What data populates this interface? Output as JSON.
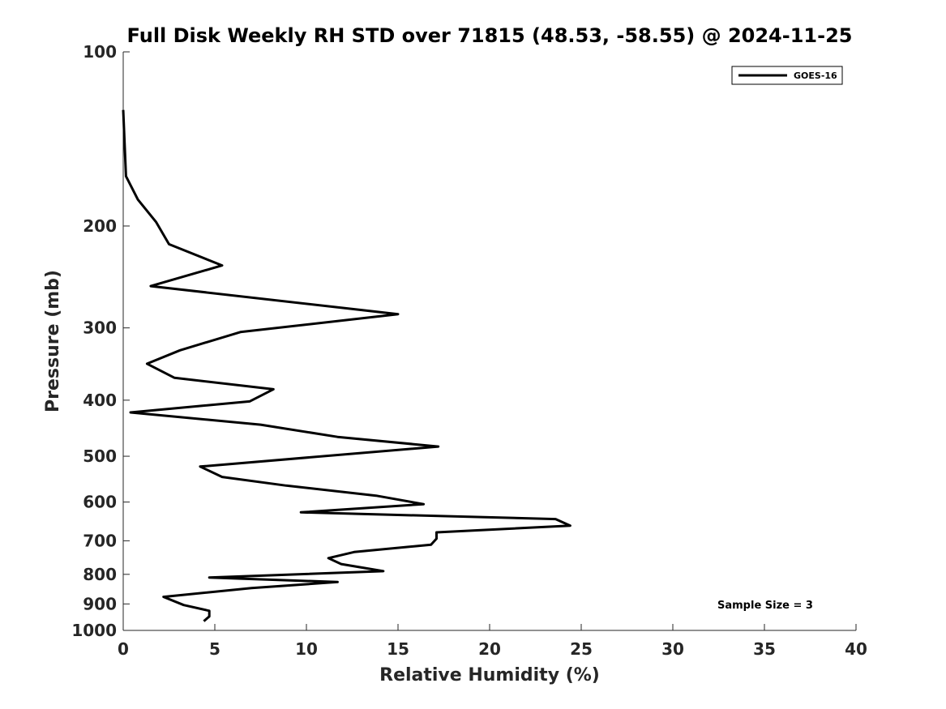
{
  "chart_data": {
    "type": "line",
    "title": "Full Disk Weekly RH STD over 71815 (48.53, -58.55) @ 2024-11-25",
    "xlabel": "Relative Humidity (%)",
    "ylabel": "Pressure (mb)",
    "xlim": [
      0,
      40
    ],
    "ylim": [
      100,
      1000
    ],
    "yscale": "log",
    "y_reversed": true,
    "xticks": [
      0,
      5,
      10,
      15,
      20,
      25,
      30,
      35,
      40
    ],
    "yticks": [
      100,
      200,
      300,
      400,
      500,
      600,
      700,
      800,
      900,
      1000
    ],
    "grid": false,
    "legend_position": "top-right",
    "annotation": "Sample Size = 3",
    "series": [
      {
        "name": "GOES-16",
        "color": "#000000",
        "x": [
          0.0,
          0.15,
          0.8,
          1.8,
          2.5,
          5.4,
          1.5,
          15.0,
          6.4,
          3.1,
          1.3,
          2.8,
          8.2,
          6.9,
          0.4,
          7.5,
          11.7,
          17.2,
          4.2,
          5.4,
          8.9,
          13.8,
          16.4,
          9.7,
          23.6,
          24.4,
          17.1,
          17.1,
          16.8,
          12.6,
          11.2,
          11.9,
          14.2,
          4.7,
          11.7,
          7.0,
          2.2,
          3.3,
          4.7,
          4.7,
          4.4
        ],
        "y": [
          126,
          164,
          180,
          197,
          215,
          234,
          254,
          284,
          305,
          328,
          346,
          366,
          383,
          402,
          420,
          441,
          463,
          481,
          521,
          543,
          562,
          585,
          605,
          625,
          642,
          659,
          677,
          694,
          711,
          732,
          750,
          768,
          790,
          810,
          825,
          845,
          875,
          904,
          925,
          946,
          964
        ]
      }
    ]
  }
}
